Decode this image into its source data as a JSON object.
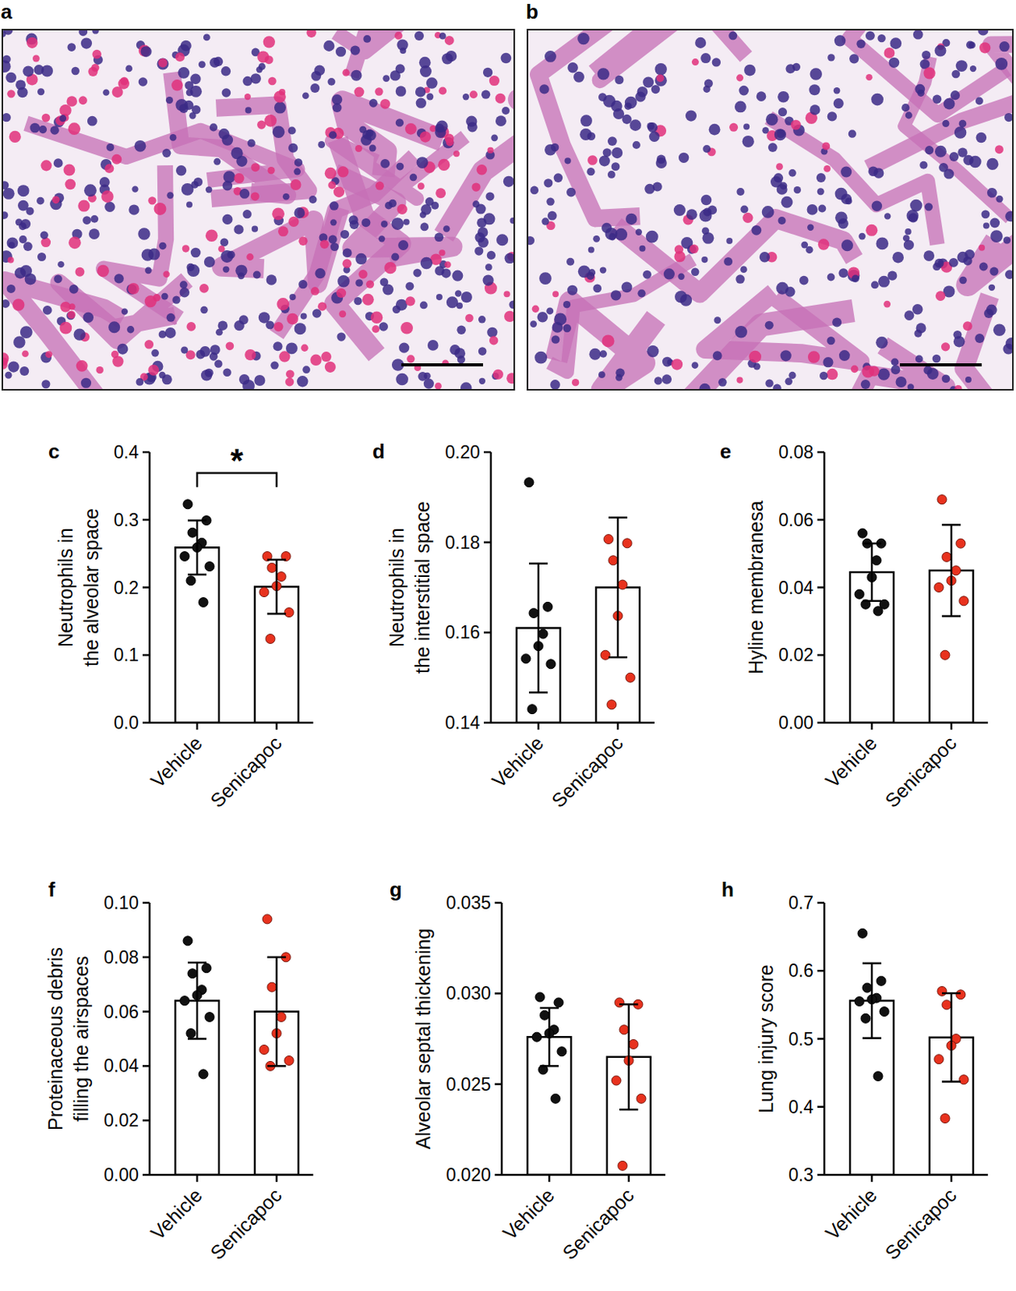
{
  "image_panels": [
    {
      "label": "a"
    },
    {
      "label": "b"
    }
  ],
  "chart_data": [
    {
      "type": "bar",
      "label": "c",
      "ylabel": [
        "Neutrophils in",
        "the alveolar space"
      ],
      "categories": [
        "Vehicle",
        "Senicapoc"
      ],
      "values": [
        0.259,
        0.201
      ],
      "errors": [
        0.04,
        0.04
      ],
      "points": [
        [
          0.323,
          0.299,
          0.281,
          0.266,
          0.259,
          0.246,
          0.231,
          0.21,
          0.178
        ],
        [
          0.246,
          0.246,
          0.229,
          0.216,
          0.202,
          0.193,
          0.163,
          0.124
        ]
      ],
      "colors": [
        "#111111",
        "#e8321e"
      ],
      "annotation": "*",
      "ylim": [
        0,
        0.4
      ],
      "yticks": [
        {
          "value": 0,
          "label": "0.0"
        },
        {
          "value": 0.1,
          "label": "0.1"
        },
        {
          "value": 0.2,
          "label": "0.2"
        },
        {
          "value": 0.3,
          "label": "0.3"
        },
        {
          "value": 0.4,
          "label": "0.4"
        }
      ]
    },
    {
      "type": "bar",
      "label": "d",
      "ylabel": [
        "Neutrophils in",
        "the interstitial space"
      ],
      "categories": [
        "Vehicle",
        "Senicapoc"
      ],
      "values": [
        0.161,
        0.17
      ],
      "errors": [
        0.0143,
        0.0155
      ],
      "points": [
        [
          0.1933,
          0.1657,
          0.1643,
          0.1597,
          0.157,
          0.1542,
          0.153,
          0.143
        ],
        [
          0.1807,
          0.1798,
          0.176,
          0.1706,
          0.1637,
          0.155,
          0.15,
          0.144
        ]
      ],
      "colors": [
        "#111111",
        "#e8321e"
      ],
      "ylim": [
        0.14,
        0.2
      ],
      "yticks": [
        {
          "value": 0.14,
          "label": "0.14"
        },
        {
          "value": 0.16,
          "label": "0.16"
        },
        {
          "value": 0.18,
          "label": "0.18"
        },
        {
          "value": 0.2,
          "label": "0.20"
        }
      ]
    },
    {
      "type": "bar",
      "label": "e",
      "ylabel": [
        "Hyline membranesa"
      ],
      "categories": [
        "Vehicle",
        "Senicapoc"
      ],
      "values": [
        0.0445,
        0.045
      ],
      "errors": [
        0.0085,
        0.0135
      ],
      "points": [
        [
          0.056,
          0.053,
          0.053,
          0.048,
          0.043,
          0.038,
          0.035,
          0.035,
          0.033
        ],
        [
          0.066,
          0.053,
          0.049,
          0.045,
          0.042,
          0.04,
          0.036,
          0.02
        ]
      ],
      "colors": [
        "#111111",
        "#e8321e"
      ],
      "ylim": [
        0,
        0.08
      ],
      "yticks": [
        {
          "value": 0,
          "label": "0.00"
        },
        {
          "value": 0.02,
          "label": "0.02"
        },
        {
          "value": 0.04,
          "label": "0.04"
        },
        {
          "value": 0.06,
          "label": "0.06"
        },
        {
          "value": 0.08,
          "label": "0.08"
        }
      ]
    },
    {
      "type": "bar",
      "label": "f",
      "ylabel": [
        "Proteinaceous debris",
        "filling the airspaces"
      ],
      "categories": [
        "Vehicle",
        "Senicapoc"
      ],
      "values": [
        0.064,
        0.06
      ],
      "errors": [
        0.014,
        0.02
      ],
      "points": [
        [
          0.086,
          0.076,
          0.074,
          0.068,
          0.066,
          0.064,
          0.058,
          0.052,
          0.037
        ],
        [
          0.094,
          0.08,
          0.069,
          0.058,
          0.052,
          0.046,
          0.042,
          0.04
        ]
      ],
      "colors": [
        "#111111",
        "#e8321e"
      ],
      "ylim": [
        0,
        0.1
      ],
      "yticks": [
        {
          "value": 0,
          "label": "0.00"
        },
        {
          "value": 0.02,
          "label": "0.02"
        },
        {
          "value": 0.04,
          "label": "0.04"
        },
        {
          "value": 0.06,
          "label": "0.06"
        },
        {
          "value": 0.08,
          "label": "0.08"
        },
        {
          "value": 0.1,
          "label": "0.10"
        }
      ]
    },
    {
      "type": "bar",
      "label": "g",
      "ylabel": [
        "Alveolar septal thickening"
      ],
      "categories": [
        "Vehicle",
        "Senicapoc"
      ],
      "values": [
        0.0276,
        0.0265
      ],
      "errors": [
        0.0016,
        0.0029
      ],
      "points": [
        [
          0.0298,
          0.0295,
          0.0288,
          0.028,
          0.0278,
          0.0276,
          0.0268,
          0.0258,
          0.0242
        ],
        [
          0.0295,
          0.0294,
          0.028,
          0.0272,
          0.0263,
          0.0252,
          0.0242,
          0.0205
        ]
      ],
      "colors": [
        "#111111",
        "#e8321e"
      ],
      "ylim": [
        0.02,
        0.035
      ],
      "yticks": [
        {
          "value": 0.02,
          "label": "0.020"
        },
        {
          "value": 0.025,
          "label": "0.025"
        },
        {
          "value": 0.03,
          "label": "0.030"
        },
        {
          "value": 0.035,
          "label": "0.035"
        }
      ]
    },
    {
      "type": "bar",
      "label": "h",
      "ylabel": [
        "Lung injury score"
      ],
      "categories": [
        "Vehicle",
        "Senicapoc"
      ],
      "values": [
        0.556,
        0.502
      ],
      "errors": [
        0.055,
        0.065
      ],
      "points": [
        [
          0.655,
          0.585,
          0.575,
          0.56,
          0.558,
          0.555,
          0.54,
          0.53,
          0.445
        ],
        [
          0.57,
          0.565,
          0.55,
          0.5,
          0.49,
          0.47,
          0.44,
          0.383
        ]
      ],
      "colors": [
        "#111111",
        "#e8321e"
      ],
      "ylim": [
        0.3,
        0.7
      ],
      "yticks": [
        {
          "value": 0.3,
          "label": "0.3"
        },
        {
          "value": 0.4,
          "label": "0.4"
        },
        {
          "value": 0.5,
          "label": "0.5"
        },
        {
          "value": 0.6,
          "label": "0.6"
        },
        {
          "value": 0.7,
          "label": "0.7"
        }
      ]
    }
  ]
}
